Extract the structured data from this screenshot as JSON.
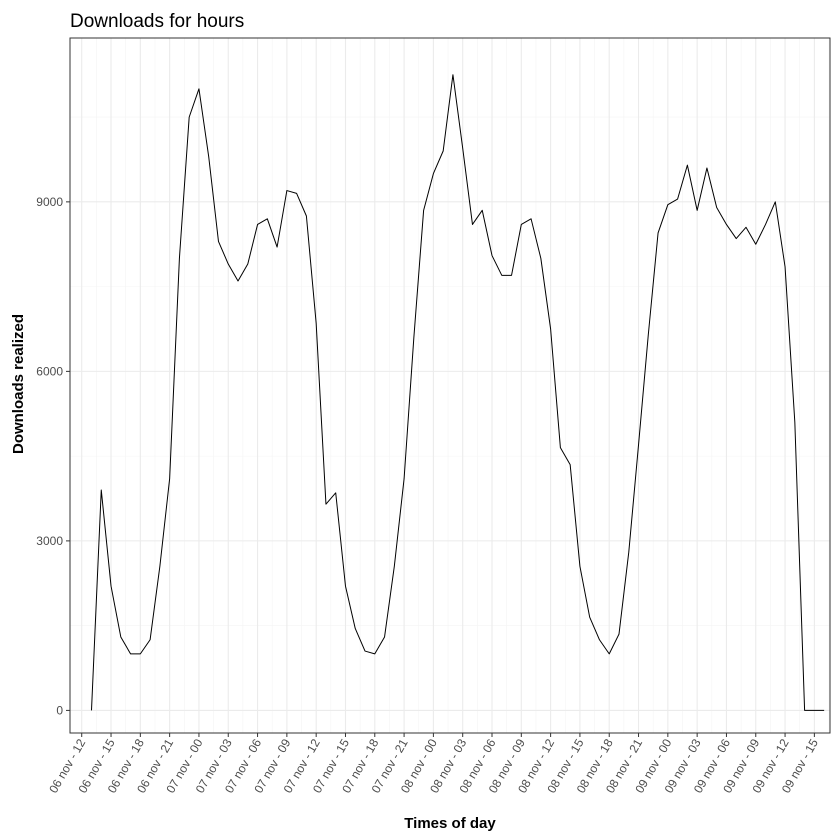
{
  "chart_data": {
    "type": "line",
    "title": "Downloads for hours",
    "xlabel": "Times of day",
    "ylabel": "Downloads realized",
    "ylim": [
      -400,
      11900
    ],
    "yticks": [
      0,
      3000,
      6000,
      9000
    ],
    "ytick_labels": [
      "0",
      "3000",
      "6000",
      "9000"
    ],
    "grid": true,
    "x_unit": "hours from 06 nov 12:00",
    "xlim": [
      -1.2,
      76.6
    ],
    "xticks": [
      0,
      3,
      6,
      9,
      12,
      15,
      18,
      21,
      24,
      27,
      30,
      33,
      36,
      39,
      42,
      45,
      48,
      51,
      54,
      57,
      60,
      63,
      66,
      69,
      72,
      75
    ],
    "xtick_labels": [
      "06 nov - 12",
      "06 nov - 15",
      "06 nov - 18",
      "06 nov - 21",
      "07 nov - 00",
      "07 nov - 03",
      "07 nov - 06",
      "07 nov - 09",
      "07 nov - 12",
      "07 nov - 15",
      "07 nov - 18",
      "07 nov - 21",
      "08 nov - 00",
      "08 nov - 03",
      "08 nov - 06",
      "08 nov - 09",
      "08 nov - 12",
      "08 nov - 15",
      "08 nov - 18",
      "08 nov - 21",
      "09 nov - 00",
      "09 nov - 03",
      "09 nov - 06",
      "09 nov - 09",
      "09 nov - 12",
      "09 nov - 15"
    ],
    "series": [
      {
        "x": [
          1,
          2,
          3,
          4,
          5,
          6,
          7,
          8,
          9,
          10,
          11,
          12,
          13,
          14,
          15,
          16,
          17,
          18,
          19,
          20,
          21,
          22,
          23,
          24,
          25,
          26,
          27,
          28,
          29,
          30,
          31,
          32,
          33,
          34,
          35,
          36,
          37,
          38,
          39,
          40,
          41,
          42,
          43,
          44,
          45,
          46,
          47,
          48,
          49,
          50,
          51,
          52,
          53,
          54,
          55,
          56,
          57,
          58,
          59,
          60,
          61,
          62,
          63,
          64,
          65,
          66,
          67,
          68,
          69,
          70,
          71,
          72,
          73,
          74,
          75,
          76
        ],
        "values": [
          0,
          3900,
          2200,
          1300,
          1000,
          1000,
          1250,
          2550,
          4100,
          8000,
          10500,
          11000,
          9800,
          8300,
          7900,
          7600,
          7900,
          8600,
          8700,
          8200,
          9200,
          9150,
          8750,
          6850,
          3650,
          3850,
          2200,
          1450,
          1050,
          1000,
          1300,
          2550,
          4100,
          6600,
          8850,
          9500,
          9900,
          11250,
          9950,
          8600,
          8850,
          8050,
          7700,
          7700,
          8600,
          8700,
          8000,
          6750,
          4650,
          4350,
          2550,
          1650,
          1250,
          1000,
          1350,
          2800,
          4700,
          6650,
          8450,
          8950,
          9050,
          9650,
          8850,
          9600,
          8900,
          8600,
          8350,
          8550,
          8250,
          8600,
          9000,
          7850,
          5100,
          0,
          0,
          0
        ]
      }
    ]
  }
}
